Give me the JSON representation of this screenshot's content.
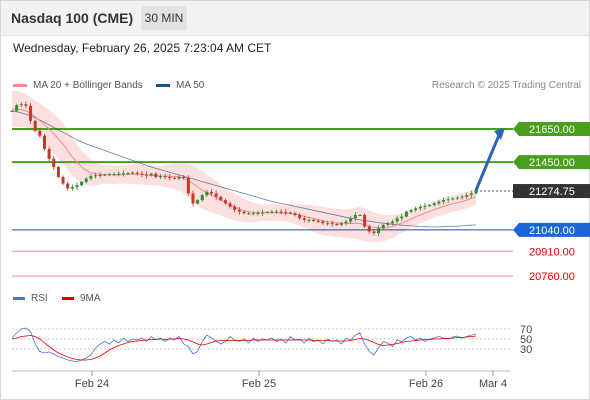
{
  "header": {
    "title": "Nasdaq 100 (CME)",
    "timeframe": "30 MIN"
  },
  "datetime": "Wednesday, February 26, 2025 7:23:04 AM CET",
  "legend": {
    "ma20": {
      "label": "MA 20 + Bollinger Bands",
      "color": "#f28b8b"
    },
    "ma50": {
      "label": "MA 50",
      "color": "#1f4e8c"
    }
  },
  "copyright": "Research © 2025 Trading Central",
  "rsi_legend": {
    "rsi": {
      "label": "RSI",
      "color": "#4a74d6"
    },
    "ma9": {
      "label": "9MA",
      "color": "#e00000"
    }
  },
  "colors": {
    "bull": "#2e8b2e",
    "bear": "#c0392b",
    "ma20": "#f28b8b",
    "ma50": "#1f4e8c",
    "band": "#fbd6d6",
    "resistance": "#4a9e1e",
    "support": "#1f4e8c",
    "target": "#f28b8b",
    "last": "#333333",
    "arrow": "#2a63b8"
  },
  "chart_data": [
    {
      "type": "candlestick",
      "title": "Nasdaq 100 (CME)",
      "timeframe": "30 MIN",
      "x_ticks": [
        "Feb 24",
        "Feb 25",
        "Feb 26",
        "Mar 4"
      ],
      "ylim": [
        20700,
        21850
      ],
      "price_levels": [
        {
          "label": "21650.00",
          "value": 21650,
          "kind": "resistance"
        },
        {
          "label": "21450.00",
          "value": 21450,
          "kind": "resistance"
        },
        {
          "label": "21274.75",
          "value": 21274.75,
          "kind": "last"
        },
        {
          "label": "21040.00",
          "value": 21040,
          "kind": "support"
        },
        {
          "label": "20910.00",
          "value": 20910,
          "kind": "target"
        },
        {
          "label": "20760.00",
          "value": 20760,
          "kind": "target"
        }
      ],
      "close": [
        21760,
        21795,
        21800,
        21790,
        21700,
        21640,
        21610,
        21530,
        21470,
        21420,
        21360,
        21320,
        21290,
        21300,
        21310,
        21330,
        21350,
        21365,
        21370,
        21372,
        21374,
        21376,
        21378,
        21380,
        21382,
        21384,
        21386,
        21380,
        21374,
        21368,
        21380,
        21360,
        21365,
        21360,
        21355,
        21350,
        21360,
        21355,
        21260,
        21200,
        21220,
        21250,
        21270,
        21260,
        21240,
        21220,
        21200,
        21180,
        21160,
        21150,
        21140,
        21140,
        21140,
        21142,
        21145,
        21148,
        21150,
        21150,
        21148,
        21145,
        21140,
        21130,
        21110,
        21100,
        21100,
        21095,
        21090,
        21080,
        21080,
        21075,
        21070,
        21080,
        21090,
        21110,
        21130,
        21130,
        21060,
        21030,
        21020,
        21050,
        21070,
        21080,
        21090,
        21110,
        21120,
        21150,
        21160,
        21170,
        21180,
        21185,
        21190,
        21200,
        21210,
        21220,
        21225,
        21230,
        21235,
        21240,
        21250,
        21260,
        21280
      ],
      "ma20": [
        21770,
        21770,
        21768,
        21760,
        21745,
        21725,
        21700,
        21675,
        21650,
        21620,
        21590,
        21560,
        21520,
        21480,
        21450,
        21420,
        21400,
        21385,
        21380,
        21375,
        21375,
        21374,
        21372,
        21373,
        21374,
        21375,
        21378,
        21377,
        21375,
        21372,
        21370,
        21368,
        21366,
        21365,
        21364,
        21363,
        21362,
        21350,
        21338,
        21320,
        21300,
        21280,
        21265,
        21250,
        21235,
        21220,
        21205,
        21190,
        21178,
        21166,
        21156,
        21150,
        21145,
        21144,
        21144,
        21144,
        21143,
        21143,
        21142,
        21140,
        21138,
        21135,
        21130,
        21122,
        21115,
        21108,
        21100,
        21095,
        21090,
        21085,
        21082,
        21080,
        21078,
        21078,
        21080,
        21078,
        21070,
        21062,
        21055,
        21052,
        21050,
        21055,
        21060,
        21070,
        21080,
        21092,
        21105,
        21118,
        21130,
        21142,
        21152,
        21162,
        21172,
        21182,
        21190,
        21198,
        21205,
        21212,
        21220,
        21230,
        21240
      ],
      "ma50": [
        21760,
        21755,
        21748,
        21740,
        21730,
        21718,
        21705,
        21690,
        21675,
        21660,
        21645,
        21630,
        21615,
        21600,
        21585,
        21572,
        21560,
        21550,
        21540,
        21530,
        21520,
        21510,
        21500,
        21490,
        21480,
        21470,
        21460,
        21450,
        21440,
        21430,
        21420,
        21412,
        21404,
        21396,
        21388,
        21380,
        21372,
        21364,
        21356,
        21348,
        21340,
        21332,
        21324,
        21316,
        21308,
        21300,
        21292,
        21284,
        21276,
        21268,
        21260,
        21252,
        21244,
        21236,
        21228,
        21220,
        21212,
        21206,
        21200,
        21194,
        21188,
        21182,
        21176,
        21170,
        21164,
        21158,
        21152,
        21146,
        21140,
        21134,
        21128,
        21122,
        21116,
        21110,
        21105,
        21100,
        21096,
        21092,
        21088,
        21084,
        21080,
        21077,
        21074,
        21071,
        21068,
        21066,
        21064,
        21062,
        21060,
        21059,
        21058,
        21058,
        21058,
        21059,
        21060,
        21061,
        21062,
        21064,
        21066,
        21068,
        21070
      ],
      "band": [
        110,
        110,
        105,
        100,
        100,
        100,
        105,
        110,
        115,
        120,
        125,
        125,
        120,
        115,
        110,
        100,
        90,
        80,
        70,
        60,
        55,
        55,
        55,
        55,
        55,
        55,
        60,
        60,
        60,
        60,
        60,
        60,
        60,
        65,
        70,
        75,
        80,
        90,
        100,
        110,
        115,
        115,
        110,
        105,
        100,
        95,
        90,
        85,
        80,
        75,
        70,
        65,
        60,
        55,
        50,
        50,
        50,
        50,
        50,
        50,
        55,
        60,
        65,
        70,
        75,
        80,
        85,
        85,
        85,
        85,
        85,
        85,
        85,
        90,
        95,
        100,
        100,
        95,
        90,
        85,
        80,
        75,
        70,
        65,
        60,
        55,
        50,
        50,
        50,
        50,
        50,
        50,
        50,
        50,
        50,
        50,
        50,
        50,
        50,
        50,
        50
      ]
    },
    {
      "type": "line",
      "title": "RSI",
      "ylim": [
        0,
        100
      ],
      "y_ticks": [
        70,
        50,
        30
      ],
      "series": [
        {
          "name": "RSI",
          "values": [
            52,
            62,
            70,
            72,
            65,
            40,
            25,
            22,
            24,
            20,
            15,
            12,
            8,
            6,
            5,
            8,
            12,
            18,
            32,
            40,
            45,
            40,
            48,
            42,
            52,
            45,
            50,
            48,
            52,
            45,
            55,
            48,
            52,
            45,
            52,
            48,
            55,
            40,
            35,
            20,
            25,
            45,
            58,
            52,
            45,
            40,
            45,
            55,
            48,
            45,
            50,
            42,
            52,
            45,
            50,
            48,
            52,
            45,
            50,
            42,
            55,
            48,
            50,
            42,
            52,
            45,
            48,
            40,
            50,
            45,
            48,
            40,
            52,
            48,
            58,
            62,
            40,
            25,
            18,
            32,
            45,
            42,
            35,
            48,
            45,
            52,
            55,
            48,
            52,
            45,
            50,
            52,
            55,
            52,
            50,
            54,
            56,
            52,
            55,
            58,
            60
          ]
        },
        {
          "name": "9MA",
          "values": [
            50,
            52,
            55,
            56,
            57,
            55,
            50,
            42,
            35,
            28,
            22,
            18,
            14,
            11,
            9,
            8,
            8,
            9,
            12,
            16,
            22,
            28,
            33,
            37,
            40,
            43,
            45,
            46,
            47,
            48,
            49,
            49,
            50,
            49,
            50,
            50,
            51,
            50,
            48,
            44,
            40,
            38,
            40,
            43,
            46,
            47,
            47,
            47,
            47,
            47,
            47,
            47,
            48,
            48,
            48,
            48,
            48,
            48,
            48,
            48,
            48,
            48,
            48,
            48,
            48,
            47,
            47,
            47,
            47,
            46,
            46,
            46,
            46,
            47,
            49,
            51,
            50,
            47,
            43,
            39,
            37,
            38,
            39,
            41,
            43,
            45,
            46,
            47,
            48,
            49,
            49,
            50,
            50,
            51,
            51,
            52,
            53,
            53,
            54,
            55,
            56
          ]
        }
      ]
    }
  ]
}
